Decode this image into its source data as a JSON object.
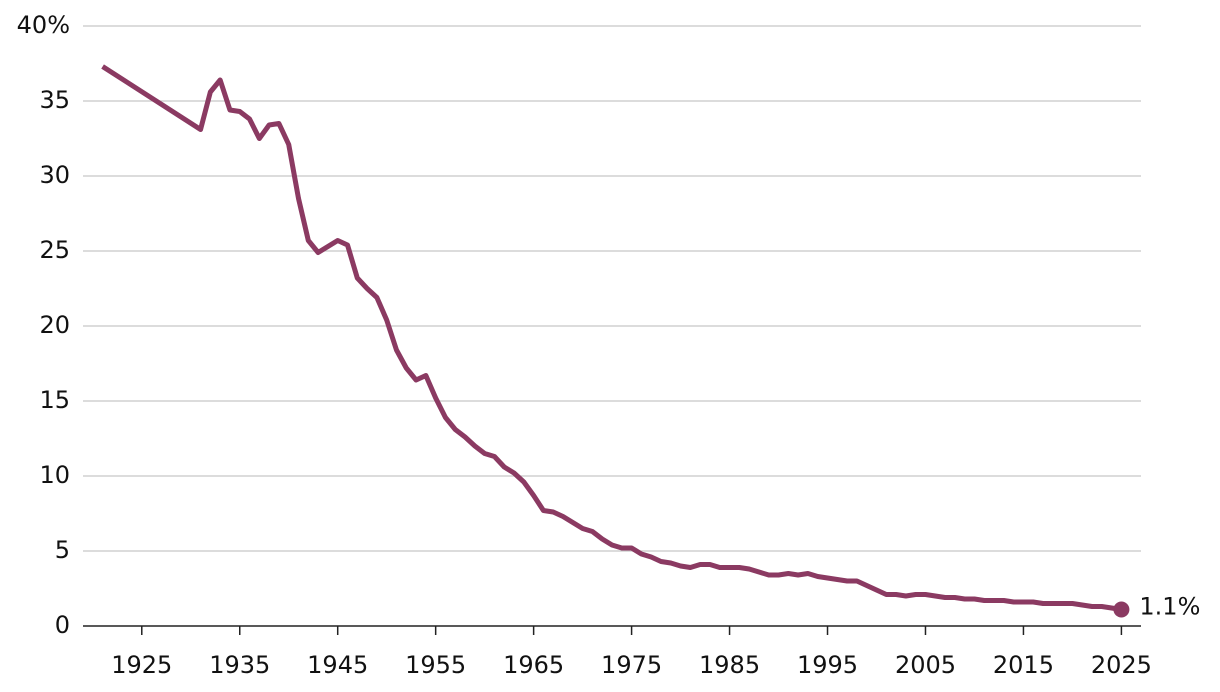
{
  "chart_data": {
    "type": "line",
    "x": [
      1921,
      1931,
      1932,
      1933,
      1934,
      1935,
      1936,
      1937,
      1938,
      1939,
      1940,
      1941,
      1942,
      1943,
      1944,
      1945,
      1946,
      1947,
      1948,
      1949,
      1950,
      1951,
      1952,
      1953,
      1954,
      1955,
      1956,
      1957,
      1958,
      1959,
      1960,
      1961,
      1962,
      1963,
      1964,
      1965,
      1966,
      1967,
      1968,
      1969,
      1970,
      1971,
      1972,
      1973,
      1974,
      1975,
      1976,
      1977,
      1978,
      1979,
      1980,
      1981,
      1982,
      1983,
      1984,
      1985,
      1986,
      1987,
      1988,
      1989,
      1990,
      1991,
      1992,
      1993,
      1994,
      1995,
      1996,
      1997,
      1998,
      1999,
      2000,
      2001,
      2002,
      2003,
      2004,
      2005,
      2006,
      2007,
      2008,
      2009,
      2010,
      2011,
      2012,
      2013,
      2014,
      2015,
      2016,
      2017,
      2018,
      2019,
      2020,
      2021,
      2022,
      2023,
      2024,
      2025
    ],
    "series": [
      {
        "color": "#8b3a62",
        "values": [
          37.3,
          33.1,
          35.6,
          36.4,
          34.4,
          34.3,
          33.8,
          32.5,
          33.4,
          33.5,
          32.1,
          28.5,
          25.7,
          24.9,
          25.3,
          25.7,
          25.4,
          23.2,
          22.5,
          21.9,
          20.4,
          18.4,
          17.2,
          16.4,
          16.7,
          15.2,
          13.9,
          13.1,
          12.6,
          12.0,
          11.5,
          11.3,
          10.6,
          10.2,
          9.6,
          8.7,
          7.7,
          7.6,
          7.3,
          6.9,
          6.5,
          6.3,
          5.8,
          5.4,
          5.2,
          5.2,
          4.8,
          4.6,
          4.3,
          4.2,
          4.0,
          3.9,
          4.1,
          4.1,
          3.9,
          3.9,
          3.9,
          3.8,
          3.6,
          3.4,
          3.4,
          3.5,
          3.4,
          3.5,
          3.3,
          3.2,
          3.1,
          3.0,
          3.0,
          2.7,
          2.4,
          2.1,
          2.1,
          2.0,
          2.1,
          2.1,
          2.0,
          1.9,
          1.9,
          1.8,
          1.8,
          1.7,
          1.7,
          1.7,
          1.6,
          1.6,
          1.6,
          1.5,
          1.5,
          1.5,
          1.5,
          1.4,
          1.3,
          1.3,
          1.2,
          1.1
        ],
        "value_labels": [
          null,
          null,
          null,
          null,
          null,
          null,
          null,
          null,
          null,
          null,
          null,
          null,
          null,
          null,
          null,
          null,
          null,
          null,
          null,
          null,
          null,
          null,
          null,
          null,
          null,
          null,
          null,
          null,
          null,
          null,
          null,
          null,
          null,
          null,
          null,
          null,
          null,
          null,
          null,
          null,
          null,
          null,
          null,
          null,
          null,
          null,
          null,
          null,
          null,
          null,
          null,
          null,
          null,
          null,
          null,
          null,
          null,
          null,
          null,
          null,
          null,
          null,
          null,
          null,
          null,
          null,
          null,
          null,
          null,
          null,
          null,
          null,
          null,
          null,
          null,
          null,
          null,
          null,
          null,
          null,
          null,
          null,
          null,
          null,
          null,
          null,
          null,
          null,
          null,
          null,
          null,
          null,
          null,
          null,
          null,
          "1.1%"
        ]
      }
    ],
    "xlim": [
      1919,
      2027
    ],
    "xticks": [
      1925,
      1935,
      1945,
      1955,
      1965,
      1975,
      1985,
      1995,
      2005,
      2015,
      2025
    ],
    "ylim": [
      0,
      40
    ],
    "yticks": [
      0,
      5,
      10,
      15,
      20,
      25,
      30,
      35,
      {
        "value": 40,
        "label": "40%"
      }
    ],
    "grid": true
  }
}
